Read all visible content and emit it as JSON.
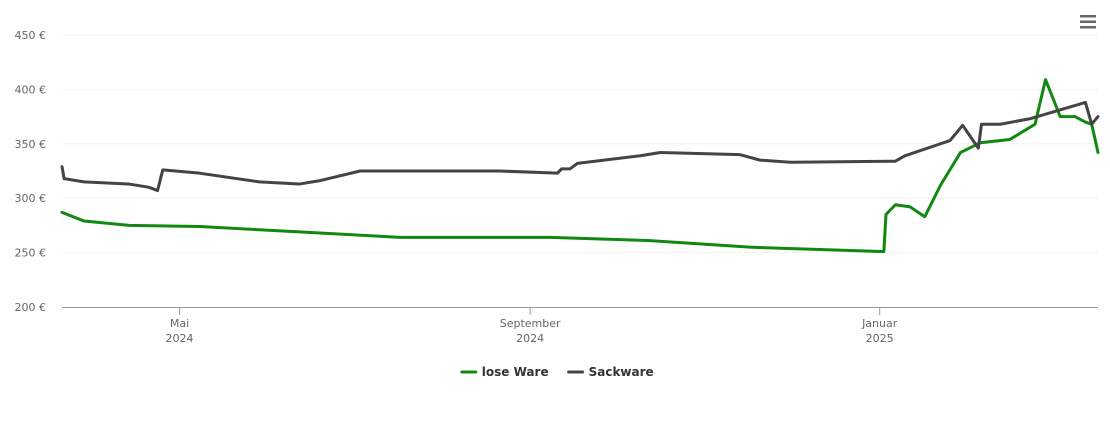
{
  "chart_data": {
    "type": "line",
    "xlim": [
      2024.221,
      2025.208
    ],
    "xticks": [
      {
        "value": 2024.333,
        "label": [
          "Mai",
          "2024"
        ]
      },
      {
        "value": 2024.667,
        "label": [
          "September",
          "2024"
        ]
      },
      {
        "value": 2025.0,
        "label": [
          "Januar",
          "2025"
        ]
      }
    ],
    "ylim": [
      200,
      450
    ],
    "yticks": [
      {
        "value": 200,
        "label": "200 €"
      },
      {
        "value": 250,
        "label": "250 €"
      },
      {
        "value": 300,
        "label": "300 €"
      },
      {
        "value": 350,
        "label": "350 €"
      },
      {
        "value": 400,
        "label": "400 €"
      },
      {
        "value": 450,
        "label": "450 €"
      }
    ],
    "grid": true,
    "legend": "bottom",
    "series": [
      {
        "name": "lose Ware",
        "color": "#118811",
        "x": [
          2024.221,
          2024.242,
          2024.285,
          2024.352,
          2024.447,
          2024.543,
          2024.686,
          2024.781,
          2024.876,
          2025.001,
          2025.004,
          2025.006,
          2025.015,
          2025.029,
          2025.043,
          2025.058,
          2025.077,
          2025.096,
          2025.124,
          2025.148,
          2025.158,
          2025.172,
          2025.186,
          2025.196,
          2025.202,
          2025.208
        ],
        "values": [
          287,
          279,
          275,
          274,
          269,
          264,
          264,
          261,
          255,
          251,
          251,
          285,
          294,
          292,
          283,
          312,
          342,
          351,
          354,
          368,
          409,
          375,
          375,
          370,
          368,
          342
        ]
      },
      {
        "name": "Sackware",
        "color": "#444444",
        "x": [
          2024.221,
          2024.223,
          2024.242,
          2024.285,
          2024.304,
          2024.312,
          2024.317,
          2024.352,
          2024.409,
          2024.447,
          2024.466,
          2024.505,
          2024.543,
          2024.638,
          2024.693,
          2024.697,
          2024.705,
          2024.712,
          2024.772,
          2024.791,
          2024.867,
          2024.886,
          2024.915,
          2025.015,
          2025.024,
          2025.067,
          2025.079,
          2025.094,
          2025.097,
          2025.115,
          2025.143,
          2025.196,
          2025.202,
          2025.208
        ],
        "values": [
          329,
          318,
          315,
          313,
          310,
          307,
          326,
          323,
          315,
          313,
          316,
          325,
          325,
          325,
          323,
          327,
          327,
          332,
          339,
          342,
          340,
          335,
          333,
          334,
          339,
          353,
          367,
          346,
          368,
          368,
          373,
          388,
          368,
          375
        ]
      }
    ]
  }
}
